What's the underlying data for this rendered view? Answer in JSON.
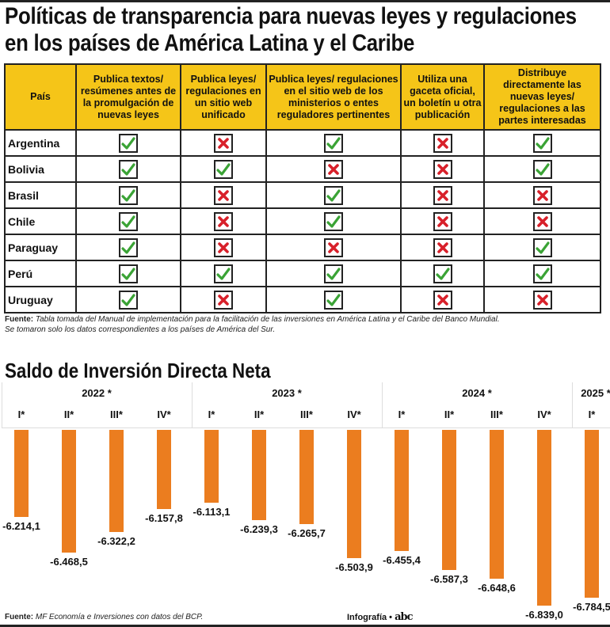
{
  "title_line1": "Políticas de transparencia para nuevas leyes y regulaciones",
  "title_line2": "en los países de América Latina y el Caribe",
  "table": {
    "headers": [
      "País",
      "Publica textos/ resúmenes antes de la promulgación de nuevas leyes",
      "Publica leyes/ regulaciones en un sitio web unificado",
      "Publica leyes/ regulaciones en el sitio web de los ministerios o entes reguladores pertinentes",
      "Utiliza una gaceta oficial, un boletín u otra publicación",
      "Distribuye directamente las nuevas leyes/ regulaciones a las partes interesadas"
    ],
    "rows": [
      {
        "country": "Argentina",
        "values": [
          true,
          false,
          true,
          false,
          true
        ]
      },
      {
        "country": "Bolivia",
        "values": [
          true,
          true,
          false,
          false,
          true
        ]
      },
      {
        "country": "Brasil",
        "values": [
          true,
          false,
          true,
          false,
          false
        ]
      },
      {
        "country": "Chile",
        "values": [
          true,
          false,
          true,
          false,
          false
        ]
      },
      {
        "country": "Paraguay",
        "values": [
          true,
          false,
          false,
          false,
          true
        ]
      },
      {
        "country": "Perú",
        "values": [
          true,
          true,
          true,
          true,
          true
        ]
      },
      {
        "country": "Uruguay",
        "values": [
          true,
          false,
          true,
          false,
          false
        ]
      }
    ],
    "colors": {
      "header": "#f5c518",
      "check": "#3aa335",
      "cross": "#d8202a"
    }
  },
  "source1_label": "Fuente:",
  "source1_text": "Tabla tomada del Manual de implementación para la facilitación de las inversiones en América Latina y el Caribe del Banco Mundial.",
  "source1_text2": "Se tomaron solo los datos correspondientes a los países de América del Sur.",
  "chart_data": {
    "type": "bar",
    "title": "Saldo de Inversión Directa Neta",
    "years": [
      {
        "label": "2022 *",
        "quarters": 4
      },
      {
        "label": "2023 *",
        "quarters": 4
      },
      {
        "label": "2024 *",
        "quarters": 4
      },
      {
        "label": "2025 *",
        "quarters": 1
      }
    ],
    "categories": [
      "I*",
      "II*",
      "III*",
      "IV*",
      "I*",
      "II*",
      "III*",
      "IV*",
      "I*",
      "II*",
      "III*",
      "IV*",
      "I*"
    ],
    "values": [
      -6214.1,
      -6468.5,
      -6322.2,
      -6157.8,
      -6113.1,
      -6239.3,
      -6265.7,
      -6503.9,
      -6455.4,
      -6587.3,
      -6648.6,
      -6839.0,
      -6784.5
    ],
    "value_labels": [
      "-6.214,1",
      "-6.468,5",
      "-6.322,2",
      "-6.157,8",
      "-6.113,1",
      "-6.239,3",
      "-6.265,7",
      "-6.503,9",
      "-6.455,4",
      "-6.587,3",
      "-6.648,6",
      "-6.839,0",
      "-6.784,5"
    ],
    "bar_color": "#eb7d1f",
    "grid": false
  },
  "source2_label": "Fuente:",
  "source2_text": "MF Economía e Inversiones con datos del BCP.",
  "credit": "Infografía •",
  "logo_text": "abc"
}
